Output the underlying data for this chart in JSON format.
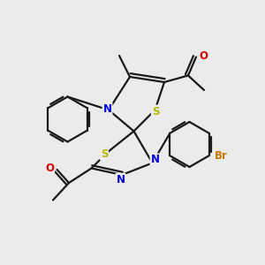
{
  "bg_color": "#ebebeb",
  "bond_color": "#1a1a1a",
  "S_color": "#b8b800",
  "N_color": "#0000dd",
  "O_color": "#dd0000",
  "Br_color": "#cc7700",
  "line_width": 1.6,
  "figsize": [
    3.0,
    3.0
  ],
  "dpi": 100,
  "xlim": [
    0,
    10
  ],
  "ylim": [
    0,
    10
  ]
}
